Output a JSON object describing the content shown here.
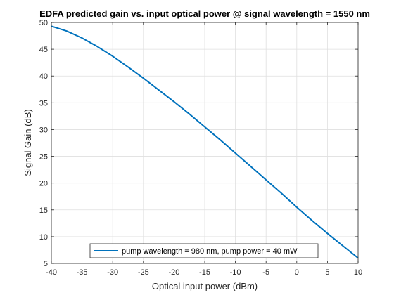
{
  "chart_data": {
    "type": "line",
    "title": "EDFA predicted gain vs. input optical power @ signal wavelength = 1550 nm",
    "xlabel": "Optical input power (dBm)",
    "ylabel": "Signal Gain (dB)",
    "xlim": [
      -40,
      10
    ],
    "ylim": [
      5,
      50
    ],
    "xticks": [
      -40,
      -35,
      -30,
      -25,
      -20,
      -15,
      -10,
      -5,
      0,
      5,
      10
    ],
    "yticks": [
      5,
      10,
      15,
      20,
      25,
      30,
      35,
      40,
      45,
      50
    ],
    "grid": true,
    "legend_position": "bottom",
    "series": [
      {
        "name": "pump wavelength = 980 nm, pump power = 40 mW",
        "color": "#0072BD",
        "x": [
          -40,
          -37.5,
          -35,
          -32.5,
          -30,
          -27.5,
          -25,
          -22.5,
          -20,
          -17.5,
          -15,
          -12.5,
          -10,
          -7.5,
          -5,
          -2.5,
          0,
          2.5,
          5,
          7.5,
          10
        ],
        "y": [
          49.3,
          48.4,
          47.1,
          45.5,
          43.7,
          41.7,
          39.6,
          37.4,
          35.2,
          32.9,
          30.5,
          28.1,
          25.6,
          23.1,
          20.6,
          18.1,
          15.5,
          13.0,
          10.6,
          8.3,
          6.0
        ]
      }
    ]
  }
}
